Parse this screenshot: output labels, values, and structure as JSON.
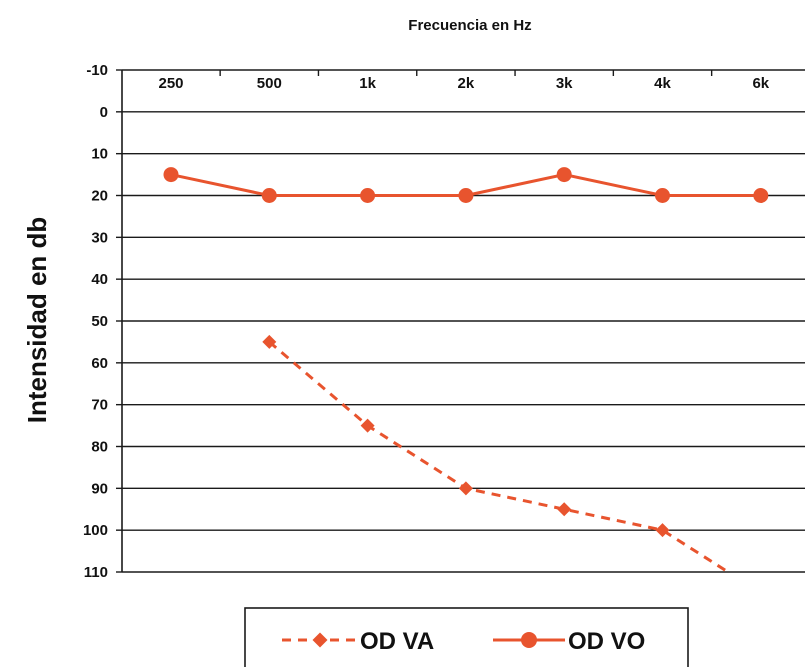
{
  "chart_data": {
    "type": "line",
    "title": "Frecuencia en Hz",
    "ylabel": "Intensidad en db",
    "x_position": "top",
    "y_inverted": true,
    "ylim": [
      -10,
      110
    ],
    "y_ticks": [
      -10,
      0,
      10,
      20,
      30,
      40,
      50,
      60,
      70,
      80,
      90,
      100,
      110
    ],
    "categories": [
      "250",
      "500",
      "1k",
      "2k",
      "3k",
      "4k",
      "6k"
    ],
    "grid": true,
    "legend_position": "bottom",
    "series": [
      {
        "name": "OD VA",
        "style": "dashed",
        "marker": "diamond",
        "color": "#e8542e",
        "values": [
          null,
          55,
          75,
          90,
          95,
          100,
          115
        ]
      },
      {
        "name": "OD VO",
        "style": "solid",
        "marker": "circle",
        "color": "#e8542e",
        "values": [
          15,
          20,
          20,
          20,
          15,
          20,
          20
        ]
      }
    ]
  }
}
